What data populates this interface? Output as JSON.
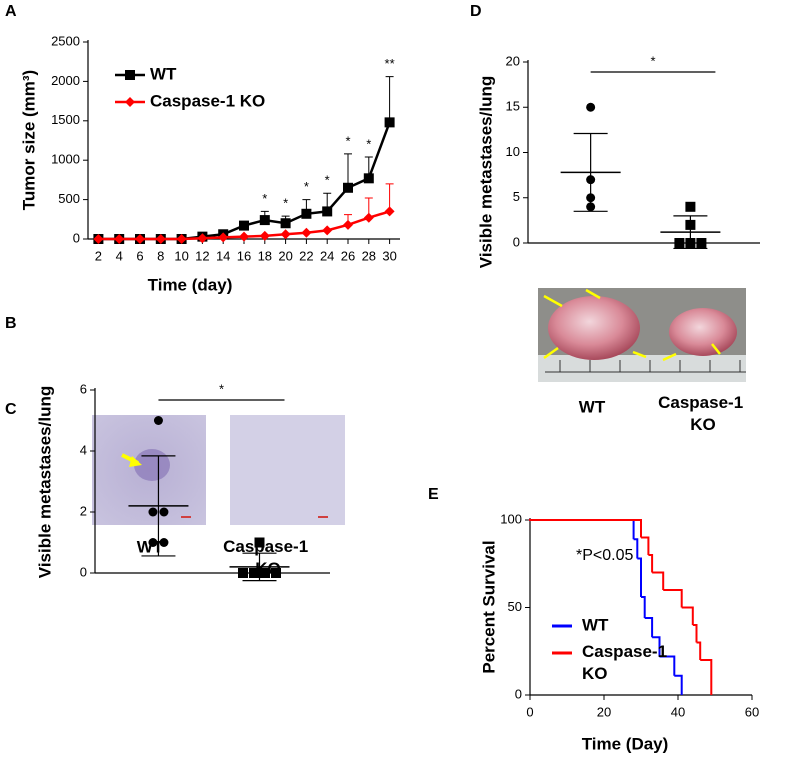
{
  "chart_data": [
    {
      "panel": "A",
      "type": "line",
      "ylabel": "Tumor size (mm³)",
      "xlabel": "Time (day)",
      "x": [
        2,
        4,
        6,
        8,
        10,
        12,
        14,
        16,
        18,
        20,
        22,
        24,
        26,
        28,
        30
      ],
      "xlim": [
        1,
        31
      ],
      "xticks": [
        2,
        4,
        6,
        8,
        10,
        12,
        14,
        16,
        18,
        20,
        22,
        24,
        26,
        28,
        30
      ],
      "ylim": [
        0,
        2500
      ],
      "yticks": [
        0,
        500,
        1000,
        1500,
        2000,
        2500
      ],
      "legend": "upper left",
      "series": [
        {
          "name": "WT",
          "color": "#000000",
          "marker": "square",
          "values": [
            0,
            0,
            0,
            0,
            0,
            30,
            60,
            170,
            240,
            200,
            320,
            350,
            650,
            770,
            1480
          ],
          "errors": [
            null,
            null,
            null,
            null,
            null,
            null,
            null,
            50,
            110,
            90,
            180,
            230,
            430,
            270,
            580
          ]
        },
        {
          "name": "Caspase-1 KO",
          "color": "#ff0000",
          "marker": "diamond",
          "values": [
            0,
            0,
            0,
            0,
            0,
            10,
            20,
            30,
            40,
            60,
            80,
            110,
            180,
            270,
            350
          ],
          "errors": [
            null,
            null,
            null,
            null,
            null,
            null,
            null,
            null,
            null,
            null,
            null,
            null,
            130,
            250,
            350
          ]
        }
      ],
      "annotations": [
        {
          "x": 18,
          "text": "*"
        },
        {
          "x": 20,
          "text": "*"
        },
        {
          "x": 22,
          "text": "*"
        },
        {
          "x": 24,
          "text": "*"
        },
        {
          "x": 26,
          "text": "*"
        },
        {
          "x": 28,
          "text": "*"
        },
        {
          "x": 30,
          "text": "**"
        }
      ]
    },
    {
      "panel": "B",
      "type": "dotplot",
      "ylabel": "Visible metastases/lung",
      "ylim": [
        0,
        6
      ],
      "yticks": [
        0,
        2,
        4,
        6
      ],
      "significance": "*",
      "series": [
        {
          "marker": "circle",
          "color": "#000000",
          "values": [
            5,
            2,
            2,
            1,
            1
          ],
          "mean": 2.2,
          "error": 1.64
        },
        {
          "marker": "square",
          "color": "#000000",
          "values": [
            1,
            0,
            0,
            0,
            0
          ],
          "mean": 0.2,
          "error": 0.45
        }
      ]
    },
    {
      "panel": "D",
      "type": "dotplot",
      "ylabel": "Visible metastases/lung",
      "ylim": [
        0,
        20
      ],
      "yticks": [
        0,
        5,
        10,
        15,
        20
      ],
      "significance": "*",
      "image_labels": [
        "WT",
        "Caspase-1 KO"
      ],
      "series": [
        {
          "marker": "circle",
          "color": "#000000",
          "values": [
            15,
            7,
            5,
            4
          ],
          "mean": 7.8,
          "error": 4.3
        },
        {
          "marker": "square",
          "color": "#000000",
          "values": [
            4,
            2,
            0,
            0,
            0
          ],
          "mean": 1.2,
          "error": 1.8
        }
      ]
    },
    {
      "panel": "E",
      "type": "survival",
      "ylabel": "Percent Survival",
      "xlabel": "Time (Day)",
      "xlim": [
        0,
        60
      ],
      "xticks": [
        0,
        20,
        40,
        60
      ],
      "ylim": [
        0,
        100
      ],
      "yticks": [
        0,
        50,
        100
      ],
      "annotation": "*P<0.05",
      "legend": "lower left",
      "series": [
        {
          "name": "WT",
          "color": "#0000ff",
          "x": [
            0,
            28,
            29,
            30,
            31,
            33,
            35,
            39,
            41
          ],
          "values": [
            100,
            89,
            78,
            56,
            44,
            33,
            22,
            11,
            0
          ]
        },
        {
          "name": "Caspase-1 KO",
          "color": "#ff0000",
          "x": [
            0,
            30,
            32,
            33,
            36,
            41,
            44,
            45,
            46,
            49
          ],
          "values": [
            100,
            90,
            80,
            70,
            60,
            50,
            40,
            30,
            20,
            0
          ]
        }
      ]
    }
  ],
  "panel_c": {
    "panel": "C",
    "image_labels": [
      "WT",
      "Caspase-1 KO"
    ]
  }
}
